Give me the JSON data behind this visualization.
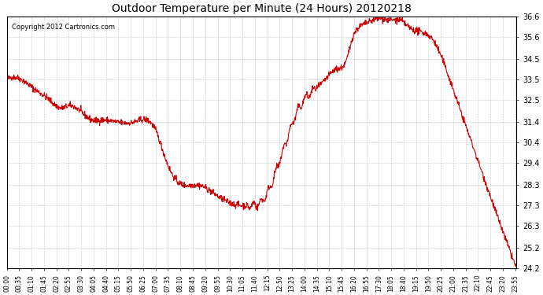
{
  "title": "Outdoor Temperature per Minute (24 Hours) 20120218",
  "copyright_text": "Copyright 2012 Cartronics.com",
  "line_color": "#cc0000",
  "background_color": "#ffffff",
  "plot_background": "#ffffff",
  "grid_color": "#aaaaaa",
  "y_min": 24.2,
  "y_max": 36.6,
  "yticks": [
    24.2,
    25.2,
    26.3,
    27.3,
    28.3,
    29.4,
    30.4,
    31.4,
    32.5,
    33.5,
    34.5,
    35.6,
    36.6
  ],
  "total_minutes": 1440,
  "x_tick_interval": 35,
  "x_tick_labels": [
    "00:00",
    "00:35",
    "01:10",
    "01:45",
    "02:20",
    "02:55",
    "03:30",
    "04:05",
    "04:40",
    "05:15",
    "05:50",
    "06:25",
    "07:00",
    "07:35",
    "08:10",
    "08:45",
    "09:20",
    "09:55",
    "10:30",
    "11:05",
    "11:40",
    "12:15",
    "12:50",
    "13:25",
    "14:00",
    "14:35",
    "15:10",
    "15:45",
    "16:20",
    "16:55",
    "17:30",
    "18:05",
    "18:40",
    "19:15",
    "19:50",
    "20:25",
    "21:00",
    "21:35",
    "22:10",
    "22:45",
    "23:20",
    "23:55"
  ]
}
